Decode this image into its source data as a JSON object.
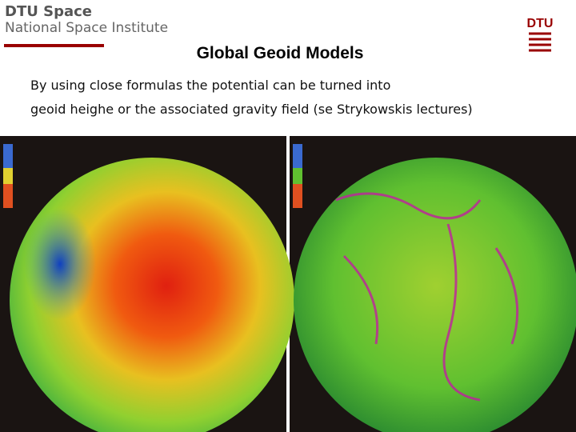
{
  "header": {
    "organization": "DTU Space",
    "institute": "National Space Institute",
    "logo": "DTU"
  },
  "title": "Global Geoid Models",
  "body": [
    "By using close formulas the potential can be turned into",
    "geoid heighe or the associated gravity field (se Strykowskis lectures)"
  ]
}
